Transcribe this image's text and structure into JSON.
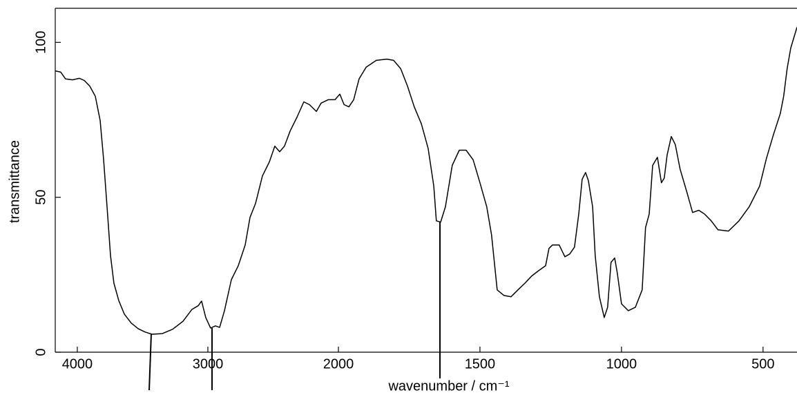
{
  "chart_data": {
    "type": "line",
    "xlabel": "wavenumber / cm⁻¹",
    "ylabel": "transmittance",
    "xlim": [
      4169,
      380
    ],
    "ylim": [
      0,
      111
    ],
    "xticks": [
      4000,
      3000,
      2000,
      1500,
      1000,
      500
    ],
    "yticks": [
      0,
      50,
      100
    ],
    "color": "#000000",
    "x": [
      4169,
      4127,
      4090,
      4037,
      3984,
      3947,
      3905,
      3862,
      3825,
      3799,
      3772,
      3746,
      3720,
      3683,
      3640,
      3587,
      3534,
      3481,
      3429,
      3349,
      3270,
      3190,
      3122,
      3074,
      3048,
      3016,
      2979,
      2942,
      2910,
      2873,
      2820,
      2767,
      2714,
      2677,
      2635,
      2582,
      2529,
      2487,
      2450,
      2413,
      2370,
      2317,
      2265,
      2222,
      2169,
      2132,
      2079,
      2026,
      1995,
      1980,
      1963,
      1946,
      1927,
      1902,
      1866,
      1829,
      1805,
      1780,
      1756,
      1732,
      1707,
      1683,
      1663,
      1654,
      1639,
      1622,
      1598,
      1573,
      1549,
      1524,
      1500,
      1476,
      1459,
      1439,
      1415,
      1390,
      1366,
      1341,
      1317,
      1293,
      1268,
      1256,
      1244,
      1220,
      1200,
      1183,
      1166,
      1151,
      1139,
      1127,
      1117,
      1102,
      1093,
      1078,
      1061,
      1049,
      1037,
      1024,
      1015,
      1000,
      976,
      951,
      927,
      915,
      902,
      890,
      873,
      859,
      849,
      839,
      824,
      810,
      793,
      768,
      749,
      727,
      707,
      683,
      659,
      622,
      585,
      549,
      512,
      488,
      463,
      439,
      427,
      415,
      402,
      380
    ],
    "values": [
      90.8,
      90.4,
      88.2,
      87.9,
      88.4,
      87.7,
      85.9,
      82.6,
      74.8,
      62.5,
      46.9,
      31.2,
      22.3,
      16.7,
      12.3,
      9.4,
      7.6,
      6.5,
      5.8,
      6.0,
      7.4,
      10.0,
      13.8,
      15.0,
      16.5,
      11.2,
      7.8,
      8.5,
      8.0,
      13.4,
      23.4,
      27.9,
      34.6,
      43.5,
      48.0,
      56.9,
      61.4,
      66.5,
      64.7,
      66.5,
      71.4,
      75.9,
      80.8,
      79.9,
      77.7,
      80.4,
      81.5,
      81.5,
      83.3,
      79.9,
      79.2,
      81.5,
      88.2,
      92.0,
      94.2,
      94.6,
      94.2,
      91.5,
      85.9,
      79.2,
      73.7,
      65.8,
      53.6,
      42.4,
      42.0,
      46.9,
      60.3,
      65.2,
      65.2,
      62.1,
      54.7,
      46.9,
      37.9,
      20.1,
      18.3,
      17.9,
      20.1,
      22.3,
      24.6,
      26.3,
      27.9,
      33.5,
      34.6,
      34.6,
      30.8,
      31.7,
      33.9,
      44.6,
      55.8,
      58.0,
      55.4,
      46.9,
      31.2,
      17.9,
      11.2,
      14.5,
      29.0,
      30.4,
      25.7,
      15.6,
      13.4,
      14.5,
      20.1,
      40.2,
      44.6,
      60.3,
      62.9,
      54.7,
      56.2,
      63.6,
      69.6,
      67.0,
      59.1,
      51.3,
      45.1,
      45.8,
      44.6,
      42.4,
      39.5,
      39.1,
      42.4,
      46.9,
      53.6,
      62.5,
      70.3,
      77.0,
      82.6,
      91.5,
      98.2,
      104.9
    ]
  }
}
